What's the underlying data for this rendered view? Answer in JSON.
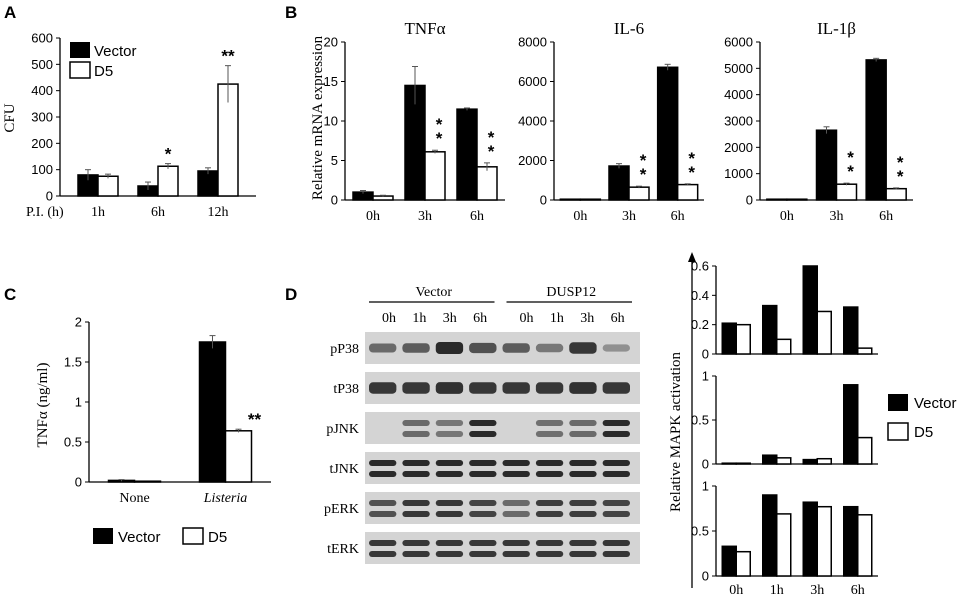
{
  "panels": {
    "A": {
      "letter": "A",
      "ylabel": "CFU",
      "xprefix": "P.I. (h)",
      "legend": [
        "Vector",
        "D5"
      ],
      "chart_data": {
        "type": "bar",
        "categories": [
          "1h",
          "6h",
          "12h"
        ],
        "series": [
          {
            "name": "Vector",
            "values": [
              80,
              38,
              95
            ],
            "errors": [
              20,
              15,
              12
            ]
          },
          {
            "name": "D5",
            "values": [
              75,
              113,
              425
            ],
            "errors": [
              8,
              10,
              70
            ]
          }
        ],
        "significance": [
          "",
          "*",
          "**"
        ],
        "ylim": [
          0,
          600
        ],
        "yticks": [
          0,
          100,
          200,
          300,
          400,
          500,
          600
        ],
        "ylabel": "CFU"
      }
    },
    "B": {
      "letter": "B",
      "ylabel": "Relative mRNA expression",
      "chart_data": [
        {
          "type": "bar",
          "title": "TNFα",
          "categories": [
            "0h",
            "3h",
            "6h"
          ],
          "series": [
            {
              "name": "Vector",
              "values": [
                1.0,
                14.5,
                11.5
              ],
              "errors": [
                0.2,
                2.4,
                0.15
              ]
            },
            {
              "name": "D5",
              "values": [
                0.5,
                6.1,
                4.2
              ],
              "errors": [
                0.1,
                0.2,
                0.5
              ]
            }
          ],
          "significance": [
            "",
            "**",
            "**"
          ],
          "ylim": [
            0,
            20
          ],
          "yticks": [
            0,
            5,
            10,
            15,
            20
          ]
        },
        {
          "type": "bar",
          "title": "IL-6",
          "categories": [
            "0h",
            "3h",
            "6h"
          ],
          "series": [
            {
              "name": "Vector",
              "values": [
                30,
                1720,
                6720
              ],
              "errors": [
                0,
                120,
                150
              ]
            },
            {
              "name": "D5",
              "values": [
                20,
                650,
                780
              ],
              "errors": [
                0,
                50,
                40
              ]
            }
          ],
          "significance": [
            "",
            "**",
            "**"
          ],
          "ylim": [
            0,
            8000
          ],
          "yticks": [
            0,
            2000,
            4000,
            6000,
            8000
          ]
        },
        {
          "type": "bar",
          "title": "IL-1β",
          "categories": [
            "0h",
            "3h",
            "6h"
          ],
          "series": [
            {
              "name": "Vector",
              "values": [
                30,
                2650,
                5320
              ],
              "errors": [
                0,
                130,
                60
              ]
            },
            {
              "name": "D5",
              "values": [
                20,
                600,
                430
              ],
              "errors": [
                0,
                40,
                30
              ]
            }
          ],
          "significance": [
            "",
            "**",
            "**"
          ],
          "ylim": [
            0,
            6000
          ],
          "yticks": [
            0,
            1000,
            2000,
            3000,
            4000,
            5000,
            6000
          ]
        }
      ]
    },
    "C": {
      "letter": "C",
      "ylabel": "TNFα (ng/ml)",
      "legend": [
        "Vector",
        "D5"
      ],
      "chart_data": {
        "type": "bar",
        "categories": [
          "None",
          "Listeria"
        ],
        "series": [
          {
            "name": "Vector",
            "values": [
              0.02,
              1.75
            ],
            "errors": [
              0.01,
              0.08
            ]
          },
          {
            "name": "D5",
            "values": [
              0.01,
              0.64
            ],
            "errors": [
              0,
              0.02
            ]
          }
        ],
        "significance": [
          "",
          "**"
        ],
        "ylim": [
          0,
          2
        ],
        "yticks": [
          0,
          0.5,
          1,
          1.5,
          2
        ]
      }
    },
    "D": {
      "letter": "D",
      "blot": {
        "groups": [
          "Vector",
          "DUSP12"
        ],
        "timepoints": [
          "0h",
          "1h",
          "3h",
          "6h"
        ],
        "rows": [
          "pP38",
          "tP38",
          "pJNK",
          "tJNK",
          "pERK",
          "tERK"
        ]
      },
      "ylabel": "Relative MAPK activation",
      "legend": [
        "Vector",
        "D5"
      ],
      "chart_data": [
        {
          "type": "bar",
          "title": "",
          "categories": [
            "0h",
            "1h",
            "3h",
            "6h"
          ],
          "series": [
            {
              "name": "Vector",
              "values": [
                0.21,
                0.33,
                0.6,
                0.32
              ]
            },
            {
              "name": "D5",
              "values": [
                0.2,
                0.1,
                0.29,
                0.04
              ]
            }
          ],
          "ylim": [
            0,
            0.6
          ],
          "yticks": [
            0,
            0.2,
            0.4,
            0.6
          ]
        },
        {
          "type": "bar",
          "title": "",
          "categories": [
            "0h",
            "1h",
            "3h",
            "6h"
          ],
          "series": [
            {
              "name": "Vector",
              "values": [
                0,
                0.1,
                0.05,
                0.9
              ]
            },
            {
              "name": "D5",
              "values": [
                0,
                0.07,
                0.06,
                0.3
              ]
            }
          ],
          "ylim": [
            0,
            1
          ],
          "yticks": [
            0,
            0.5,
            1
          ]
        },
        {
          "type": "bar",
          "title": "",
          "categories": [
            "0h",
            "1h",
            "3h",
            "6h"
          ],
          "series": [
            {
              "name": "Vector",
              "values": [
                0.33,
                0.9,
                0.82,
                0.77
              ]
            },
            {
              "name": "D5",
              "values": [
                0.27,
                0.69,
                0.77,
                0.68
              ]
            }
          ],
          "ylim": [
            0,
            1
          ],
          "yticks": [
            0,
            0.5,
            1
          ]
        }
      ]
    }
  },
  "colors": {
    "vector": "#000000",
    "d5": "#ffffff",
    "axis": "#000000",
    "blot_bg": "#d4d4d4",
    "band": "#2a2a2a"
  }
}
